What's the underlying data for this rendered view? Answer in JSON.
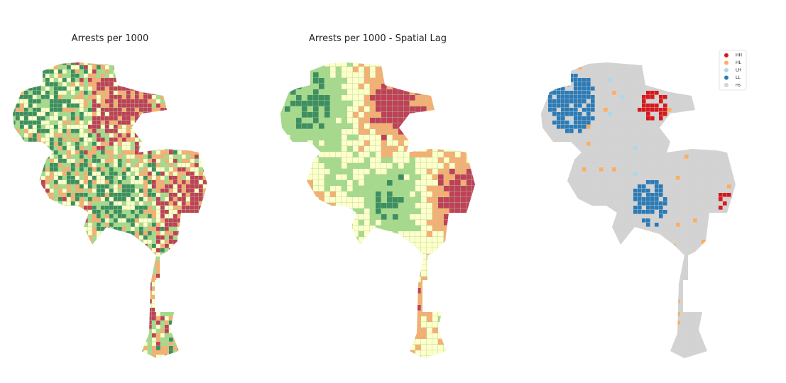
{
  "panels": [
    {
      "title": "Arrests per 1000"
    },
    {
      "title": "Arrests per 1000 - Spatial Lag"
    },
    {
      "legend": [
        {
          "label": "HH",
          "color": "#d7191c"
        },
        {
          "label": "HL",
          "color": "#fdae61"
        },
        {
          "label": "LH",
          "color": "#abd9e9"
        },
        {
          "label": "LL",
          "color": "#2c7bb6"
        },
        {
          "label": "ns",
          "color": "#d3d3d3"
        }
      ]
    }
  ]
}
